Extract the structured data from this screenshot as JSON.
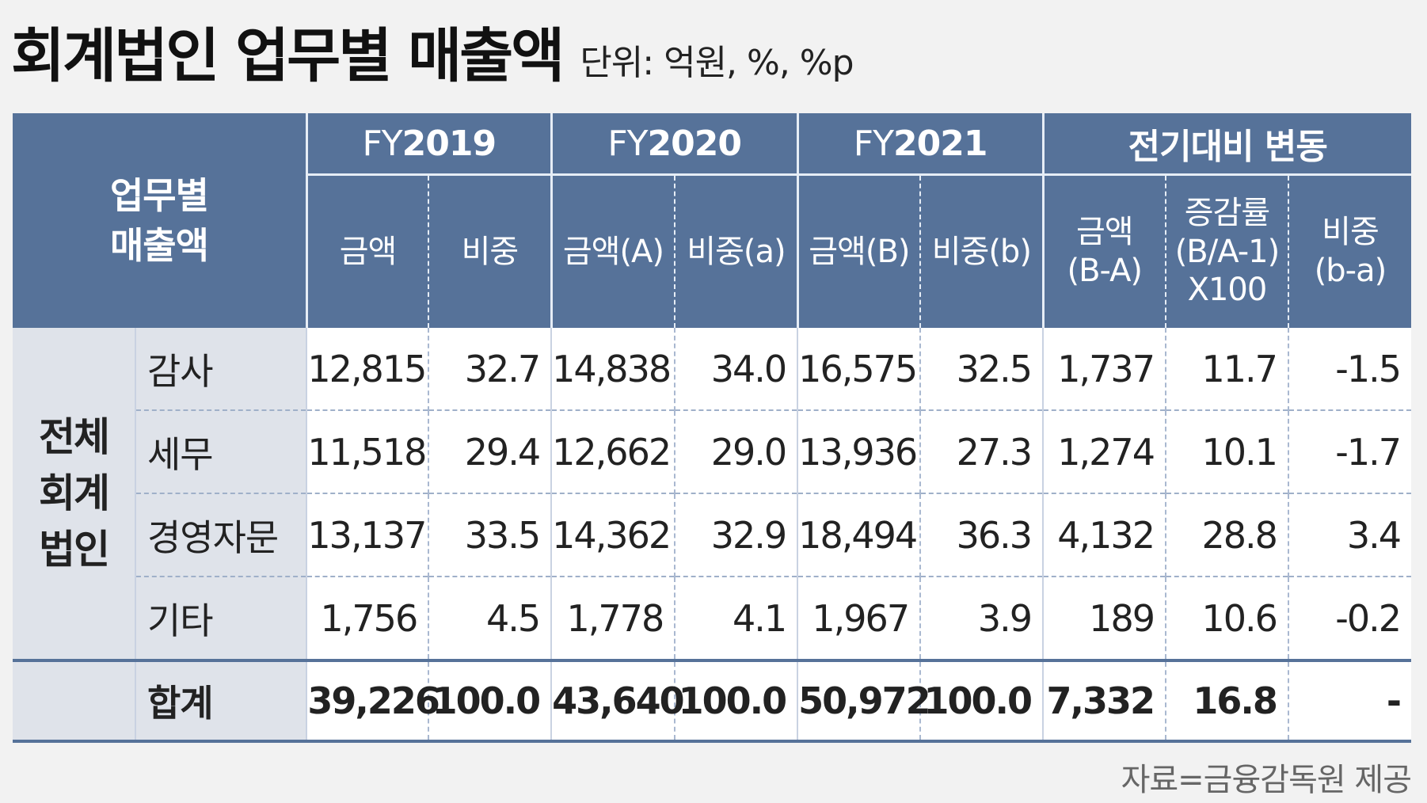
{
  "header": {
    "title": "회계법인 업무별 매출액",
    "unit": "단위: 억원, %, %p"
  },
  "chart_data": {
    "type": "table",
    "row_header_label_1": "업무별",
    "row_header_label_2": "매출액",
    "group_label_1": "전체",
    "group_label_2": "회계",
    "group_label_3": "법인",
    "column_groups": [
      {
        "prefix": "FY",
        "year": "2019"
      },
      {
        "prefix": "FY",
        "year": "2020"
      },
      {
        "prefix": "FY",
        "year": "2021"
      },
      {
        "prefix": "",
        "year": "전기대비 변동"
      }
    ],
    "columns": [
      {
        "l1": "금액",
        "l2": "",
        "l3": ""
      },
      {
        "l1": "비중",
        "l2": "",
        "l3": ""
      },
      {
        "l1": "금액(A)",
        "l2": "",
        "l3": ""
      },
      {
        "l1": "비중(a)",
        "l2": "",
        "l3": ""
      },
      {
        "l1": "금액(B)",
        "l2": "",
        "l3": ""
      },
      {
        "l1": "비중(b)",
        "l2": "",
        "l3": ""
      },
      {
        "l1": "금액",
        "l2": "(B-A)",
        "l3": ""
      },
      {
        "l1": "증감률",
        "l2": "(B/A-1)",
        "l3": "X100"
      },
      {
        "l1": "비중",
        "l2": "(b-a)",
        "l3": ""
      }
    ],
    "rows": [
      {
        "label": "감사",
        "values": [
          "12,815",
          "32.7",
          "14,838",
          "34.0",
          "16,575",
          "32.5",
          "1,737",
          "11.7",
          "-1.5"
        ]
      },
      {
        "label": "세무",
        "values": [
          "11,518",
          "29.4",
          "12,662",
          "29.0",
          "13,936",
          "27.3",
          "1,274",
          "10.1",
          "-1.7"
        ]
      },
      {
        "label": "경영자문",
        "values": [
          "13,137",
          "33.5",
          "14,362",
          "32.9",
          "18,494",
          "36.3",
          "4,132",
          "28.8",
          "3.4"
        ]
      },
      {
        "label": "기타",
        "values": [
          "1,756",
          "4.5",
          "1,778",
          "4.1",
          "1,967",
          "3.9",
          "189",
          "10.6",
          "-0.2"
        ]
      }
    ],
    "total": {
      "label": "합계",
      "values": [
        "39,226",
        "100.0",
        "43,640",
        "100.0",
        "50,972",
        "100.0",
        "7,332",
        "16.8",
        "-"
      ]
    }
  },
  "footer": {
    "source": "자료=금융감독원 제공"
  }
}
